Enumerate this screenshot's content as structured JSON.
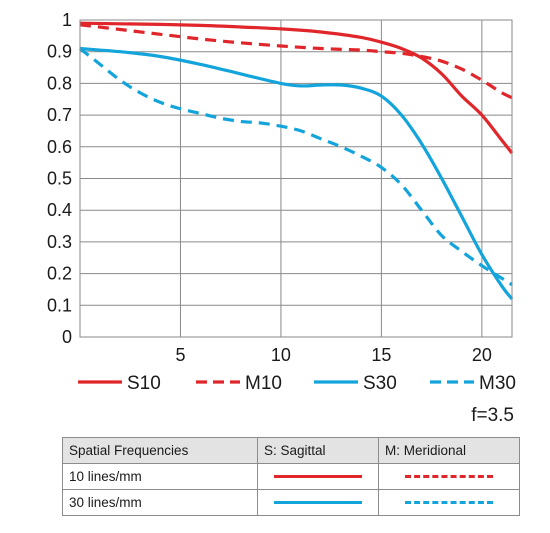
{
  "chart_data": {
    "type": "line",
    "title": "",
    "xlabel": "",
    "ylabel": "",
    "xlim": [
      0,
      21.5
    ],
    "ylim": [
      0,
      1
    ],
    "x_ticks": [
      "5",
      "10",
      "15",
      "20"
    ],
    "y_ticks": [
      "0",
      "0.1",
      "0.2",
      "0.3",
      "0.4",
      "0.5",
      "0.6",
      "0.7",
      "0.8",
      "0.9",
      "1"
    ],
    "grid": true,
    "legend_position": "bottom",
    "series": [
      {
        "name": "S10",
        "color": "#e0262b",
        "style": "solid",
        "x": [
          0,
          2,
          4,
          6,
          8,
          10,
          12,
          14,
          15,
          16,
          17,
          18,
          19,
          20,
          21,
          21.5
        ],
        "y": [
          0.99,
          0.988,
          0.986,
          0.983,
          0.978,
          0.972,
          0.962,
          0.945,
          0.93,
          0.91,
          0.88,
          0.83,
          0.76,
          0.7,
          0.62,
          0.58
        ]
      },
      {
        "name": "M10",
        "color": "#e0262b",
        "style": "dashed",
        "x": [
          0,
          2,
          4,
          6,
          8,
          10,
          12,
          14,
          15,
          16,
          17,
          18,
          19,
          20,
          21,
          21.5
        ],
        "y": [
          0.985,
          0.97,
          0.955,
          0.94,
          0.928,
          0.918,
          0.91,
          0.905,
          0.9,
          0.895,
          0.885,
          0.87,
          0.845,
          0.81,
          0.77,
          0.755
        ]
      },
      {
        "name": "S30",
        "color": "#13a4db",
        "style": "solid",
        "x": [
          0,
          2,
          4,
          6,
          8,
          10,
          11,
          12,
          13,
          14,
          15,
          16,
          17,
          18,
          19,
          20,
          21,
          21.5
        ],
        "y": [
          0.91,
          0.9,
          0.885,
          0.86,
          0.83,
          0.8,
          0.792,
          0.795,
          0.795,
          0.785,
          0.76,
          0.7,
          0.61,
          0.5,
          0.38,
          0.26,
          0.16,
          0.12
        ]
      },
      {
        "name": "M30",
        "color": "#13a4db",
        "style": "dashed",
        "x": [
          0,
          1,
          2,
          3,
          4,
          5,
          6,
          7,
          8,
          9,
          10,
          11,
          12,
          13,
          14,
          15,
          16,
          17,
          18,
          19,
          20,
          21,
          21.5
        ],
        "y": [
          0.91,
          0.86,
          0.81,
          0.77,
          0.74,
          0.72,
          0.705,
          0.69,
          0.68,
          0.675,
          0.665,
          0.65,
          0.625,
          0.6,
          0.57,
          0.535,
          0.48,
          0.4,
          0.32,
          0.27,
          0.225,
          0.185,
          0.165
        ]
      }
    ]
  },
  "aperture_label": "f=3.5",
  "table": {
    "header": [
      "Spatial Frequencies",
      "S: Sagittal",
      "M: Meridional"
    ],
    "rows": [
      {
        "label": "10 lines/mm",
        "sagittal_color": "#e0262b",
        "meridional_color": "#e0262b"
      },
      {
        "label": "30 lines/mm",
        "sagittal_color": "#13a4db",
        "meridional_color": "#13a4db"
      }
    ]
  }
}
